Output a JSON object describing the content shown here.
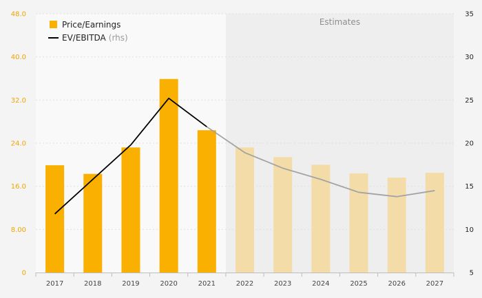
{
  "chart_data": {
    "type": "bar",
    "categories": [
      "2017",
      "2018",
      "2019",
      "2020",
      "2021",
      "2022",
      "2023",
      "2024",
      "2025",
      "2026",
      "2027"
    ],
    "series": [
      {
        "name": "Price/Earnings",
        "axis": "left",
        "type": "bar",
        "values": [
          19.9,
          18.3,
          23.2,
          35.9,
          26.4,
          23.2,
          21.4,
          20.0,
          18.4,
          17.6,
          18.5
        ]
      },
      {
        "name": "EV/EBITDA",
        "name_suffix": "(rhs)",
        "axis": "right",
        "type": "line",
        "values": [
          11.8,
          15.8,
          19.8,
          25.2,
          21.9,
          18.9,
          17.1,
          15.8,
          14.3,
          13.8,
          14.5
        ]
      }
    ],
    "estimate_from": "2022",
    "annotations": [
      "Estimates"
    ],
    "y_left": {
      "ylim": [
        0,
        48
      ],
      "ticks": [
        0,
        8,
        16,
        24,
        32,
        40,
        48
      ],
      "tick_labels": [
        "0",
        "8.00",
        "16.0",
        "24.0",
        "32.0",
        "40.0",
        "48.0"
      ]
    },
    "y_right": {
      "ylim": [
        5,
        35
      ],
      "ticks": [
        5,
        10,
        15,
        20,
        25,
        30,
        35
      ],
      "tick_labels": [
        "5",
        "10",
        "15",
        "20",
        "25",
        "30",
        "35"
      ]
    },
    "grid": true,
    "legend_position": "top-left",
    "colors": {
      "bar_actual": "#f9b000",
      "bar_estimate": "#f3dca8",
      "line_actual": "#000000",
      "line_estimate": "#a3a3a3",
      "estimate_shade": "#eeeeee",
      "plot_background": "#f9f9f9",
      "left_axis_text": "#f0a500"
    }
  }
}
